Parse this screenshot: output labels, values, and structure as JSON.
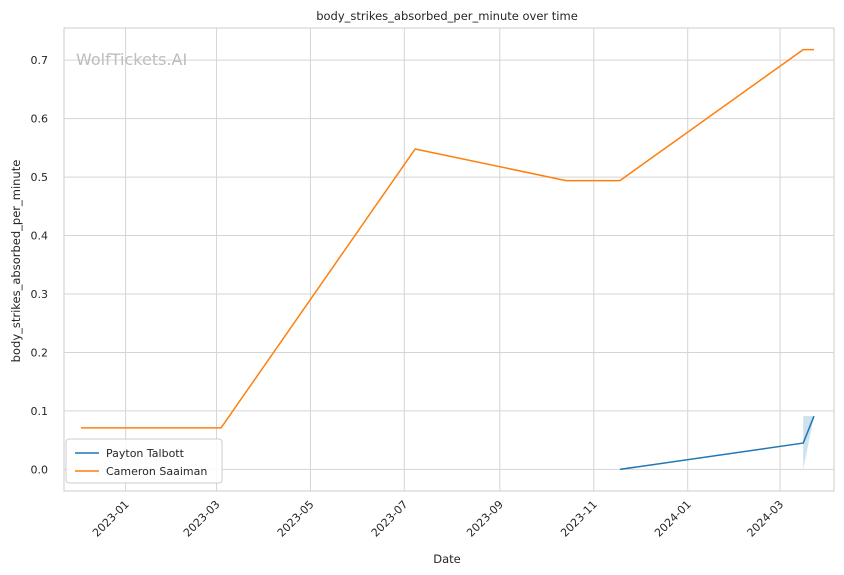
{
  "watermark": "WolfTickets.AI",
  "chart_data": {
    "type": "line",
    "title": "body_strikes_absorbed_per_minute over time",
    "xlabel": "Date",
    "ylabel": "body_strikes_absorbed_per_minute",
    "x_tick_labels": [
      "2023-01",
      "2023-03",
      "2023-05",
      "2023-07",
      "2023-09",
      "2023-11",
      "2024-01",
      "2024-03"
    ],
    "x_ticks": [
      "2023-01-01",
      "2023-03-01",
      "2023-05-01",
      "2023-07-01",
      "2023-09-01",
      "2023-11-01",
      "2024-01-01",
      "2024-03-01"
    ],
    "y_ticks": [
      0.0,
      0.1,
      0.2,
      0.3,
      0.4,
      0.5,
      0.6,
      0.7
    ],
    "y_tick_labels": [
      "0.0",
      "0.1",
      "0.2",
      "0.3",
      "0.4",
      "0.5",
      "0.6",
      "0.7"
    ],
    "xlim": [
      "2022-11-22",
      "2024-04-05"
    ],
    "ylim": [
      -0.037,
      0.755
    ],
    "grid": true,
    "legend_position": "lower-left",
    "series": [
      {
        "name": "Payton Talbott",
        "color": "#1f77b4",
        "points": [
          {
            "x": "2023-11-18",
            "y": 0.0
          },
          {
            "x": "2024-03-16",
            "y": 0.045
          },
          {
            "x": "2024-03-23",
            "y": 0.091
          }
        ],
        "band": [
          {
            "x": "2024-03-16",
            "low": 0.0,
            "high": 0.091
          },
          {
            "x": "2024-03-23",
            "low": 0.091,
            "high": 0.091
          }
        ]
      },
      {
        "name": "Cameron Saaiman",
        "color": "#ff7f0e",
        "points": [
          {
            "x": "2022-12-03",
            "y": 0.071
          },
          {
            "x": "2023-03-04",
            "y": 0.071
          },
          {
            "x": "2023-07-08",
            "y": 0.548
          },
          {
            "x": "2023-10-14",
            "y": 0.494
          },
          {
            "x": "2023-11-18",
            "y": 0.494
          },
          {
            "x": "2024-03-16",
            "y": 0.718
          },
          {
            "x": "2024-03-23",
            "y": 0.718
          }
        ]
      }
    ]
  }
}
